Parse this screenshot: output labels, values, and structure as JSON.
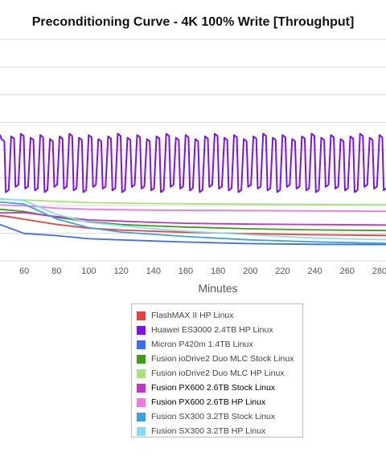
{
  "chart_data": {
    "type": "line",
    "title": "Preconditioning Curve - 4K 100% Write [Throughput]",
    "xlabel": "Minutes",
    "ylabel": "",
    "x_ticks": [
      60,
      80,
      100,
      120,
      140,
      160,
      180,
      200,
      220,
      240,
      260,
      280
    ],
    "x_range": [
      45,
      284
    ],
    "y_range": [
      0,
      100
    ],
    "grid": true,
    "legend_position": "bottom",
    "series": [
      {
        "name": "FlashMAX II HP Linux",
        "color": "#e8403a",
        "points": [
          [
            45,
            20.4
          ],
          [
            50,
            20.0
          ],
          [
            60,
            18.8
          ],
          [
            80,
            16.5
          ],
          [
            100,
            14.8
          ],
          [
            120,
            13.9
          ],
          [
            140,
            13.4
          ],
          [
            160,
            12.9
          ],
          [
            200,
            12.3
          ],
          [
            240,
            11.8
          ],
          [
            284,
            11.5
          ]
        ]
      },
      {
        "name": "Huawei ES3000 2.4TB HP Linux",
        "color": "#7f12e9",
        "style": "oscillating",
        "period": 6,
        "high": 55,
        "low": 31,
        "points": [
          [
            45,
            57.0
          ],
          [
            284,
            57.0
          ]
        ]
      },
      {
        "name": "Micron P420m 1.4TB Linux",
        "color": "#3e6cf0",
        "points": [
          [
            45,
            16.4
          ],
          [
            60,
            12.4
          ],
          [
            80,
            11.4
          ],
          [
            100,
            10.0
          ],
          [
            140,
            9.0
          ],
          [
            160,
            8.5
          ],
          [
            200,
            7.8
          ],
          [
            240,
            7.5
          ],
          [
            284,
            7.4
          ]
        ]
      },
      {
        "name": "Fusion ioDrive2 Duo MLC Stock Linux",
        "color": "#3f9c1b",
        "points": [
          [
            45,
            23.3
          ],
          [
            60,
            22.3
          ],
          [
            80,
            19.7
          ],
          [
            100,
            17.7
          ],
          [
            120,
            16.4
          ],
          [
            140,
            15.8
          ],
          [
            160,
            15.3
          ],
          [
            200,
            14.5
          ],
          [
            240,
            14.0
          ],
          [
            284,
            13.7
          ]
        ]
      },
      {
        "name": "Fusion ioDrive2 Duo MLC HP Linux",
        "color": "#a8e27a",
        "points": [
          [
            45,
            27.8
          ],
          [
            60,
            27.5
          ],
          [
            80,
            26.9
          ],
          [
            100,
            26.3
          ],
          [
            140,
            25.9
          ],
          [
            200,
            25.6
          ],
          [
            284,
            25.4
          ]
        ]
      },
      {
        "name": "Fusion PX600 2.6TB Stock Linux",
        "color": "#c235c2",
        "points": [
          [
            45,
            21.7
          ],
          [
            60,
            21.8
          ],
          [
            80,
            20.0
          ],
          [
            100,
            18.5
          ],
          [
            140,
            17.4
          ],
          [
            160,
            17.0
          ],
          [
            200,
            16.6
          ],
          [
            240,
            16.4
          ],
          [
            284,
            16.2
          ]
        ]
      },
      {
        "name": "Fusion PX600 2.6TB HP Linux",
        "color": "#ec7ce0",
        "points": [
          [
            45,
            25.2
          ],
          [
            60,
            24.9
          ],
          [
            80,
            23.8
          ],
          [
            100,
            23.3
          ],
          [
            140,
            22.9
          ],
          [
            200,
            22.7
          ],
          [
            284,
            22.4
          ]
        ]
      },
      {
        "name": "Fusion SX300 3.2TB Stock Linux",
        "color": "#3aa3dd",
        "points": [
          [
            45,
            26.6
          ],
          [
            60,
            25.6
          ],
          [
            80,
            19.0
          ],
          [
            100,
            15.0
          ],
          [
            120,
            13.0
          ],
          [
            160,
            11.0
          ],
          [
            200,
            9.5
          ],
          [
            240,
            8.6
          ],
          [
            284,
            7.9
          ]
        ]
      },
      {
        "name": "Fusion SX300 3.2TB HP Linux",
        "color": "#84ddf5",
        "points": [
          [
            45,
            28.1
          ],
          [
            60,
            27.2
          ],
          [
            80,
            21.0
          ],
          [
            100,
            17.4
          ],
          [
            140,
            14.5
          ],
          [
            160,
            13.4
          ],
          [
            200,
            11.8
          ],
          [
            240,
            10.3
          ],
          [
            284,
            9.6
          ]
        ]
      }
    ],
    "legend_emphasis": [
      5,
      6
    ]
  }
}
